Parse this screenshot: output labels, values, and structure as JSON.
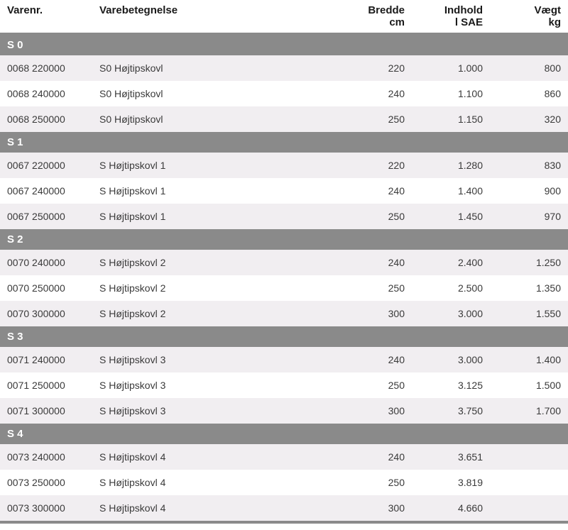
{
  "columns": {
    "varenr": {
      "label": "Varenr.",
      "sub": ""
    },
    "beteg": {
      "label": "Varebetegnelse",
      "sub": ""
    },
    "bredde": {
      "label": "Bredde",
      "sub": "cm"
    },
    "indhold": {
      "label": "Indhold",
      "sub": "l SAE"
    },
    "vaegt": {
      "label": "Vægt",
      "sub": "kg"
    }
  },
  "colors": {
    "group_bg": "#8a8a8a",
    "group_text": "#ffffff",
    "row_even_bg": "#f1eef1",
    "row_odd_bg": "#ffffff",
    "text": "#3a3a3a",
    "header_text": "#1a1a1a",
    "header_rule": "#8a8a8a"
  },
  "groups": [
    {
      "label": "S 0",
      "rows": [
        {
          "varenr": "0068 220000",
          "beteg": "S0 Højtipskovl",
          "bredde": "220",
          "indhold": "1.000",
          "vaegt": "800"
        },
        {
          "varenr": "0068 240000",
          "beteg": "S0 Højtipskovl",
          "bredde": "240",
          "indhold": "1.100",
          "vaegt": "860"
        },
        {
          "varenr": "0068 250000",
          "beteg": "S0 Højtipskovl",
          "bredde": "250",
          "indhold": "1.150",
          "vaegt": "320"
        }
      ]
    },
    {
      "label": "S 1",
      "rows": [
        {
          "varenr": "0067 220000",
          "beteg": "S Højtipskovl 1",
          "bredde": "220",
          "indhold": "1.280",
          "vaegt": "830"
        },
        {
          "varenr": "0067 240000",
          "beteg": "S Højtipskovl 1",
          "bredde": "240",
          "indhold": "1.400",
          "vaegt": "900"
        },
        {
          "varenr": "0067 250000",
          "beteg": "S Højtipskovl 1",
          "bredde": "250",
          "indhold": "1.450",
          "vaegt": "970"
        }
      ]
    },
    {
      "label": "S 2",
      "rows": [
        {
          "varenr": "0070 240000",
          "beteg": "S Højtipskovl 2",
          "bredde": "240",
          "indhold": "2.400",
          "vaegt": "1.250"
        },
        {
          "varenr": "0070 250000",
          "beteg": "S Højtipskovl 2",
          "bredde": "250",
          "indhold": "2.500",
          "vaegt": "1.350"
        },
        {
          "varenr": "0070 300000",
          "beteg": "S Højtipskovl 2",
          "bredde": "300",
          "indhold": "3.000",
          "vaegt": "1.550"
        }
      ]
    },
    {
      "label": "S 3",
      "rows": [
        {
          "varenr": "0071 240000",
          "beteg": "S Højtipskovl 3",
          "bredde": "240",
          "indhold": "3.000",
          "vaegt": "1.400"
        },
        {
          "varenr": "0071 250000",
          "beteg": "S Højtipskovl 3",
          "bredde": "250",
          "indhold": "3.125",
          "vaegt": "1.500"
        },
        {
          "varenr": "0071 300000",
          "beteg": "S Højtipskovl 3",
          "bredde": "300",
          "indhold": "3.750",
          "vaegt": "1.700"
        }
      ]
    },
    {
      "label": "S 4",
      "rows": [
        {
          "varenr": "0073 240000",
          "beteg": "S Højtipskovl 4",
          "bredde": "240",
          "indhold": "3.651",
          "vaegt": ""
        },
        {
          "varenr": "0073 250000",
          "beteg": "S Højtipskovl 4",
          "bredde": "250",
          "indhold": "3.819",
          "vaegt": ""
        },
        {
          "varenr": "0073 300000",
          "beteg": "S Højtipskovl 4",
          "bredde": "300",
          "indhold": "4.660",
          "vaegt": ""
        }
      ]
    }
  ]
}
